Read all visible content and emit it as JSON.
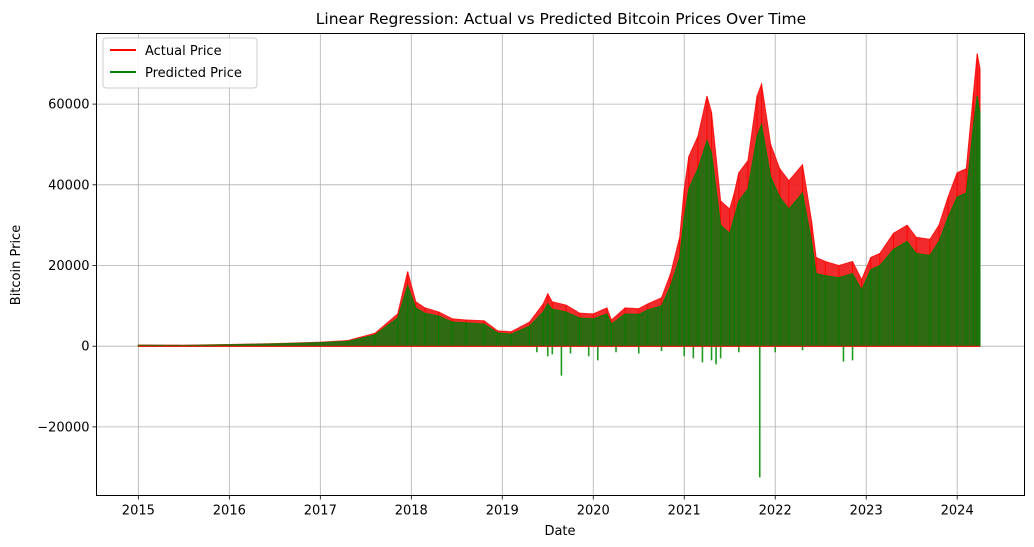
{
  "chart_data": {
    "type": "line",
    "title": "Linear Regression: Actual vs Predicted Bitcoin Prices Over Time",
    "xlabel": "Date",
    "ylabel": "Bitcoin Price",
    "xlim": [
      2014.54,
      2024.74
    ],
    "ylim": [
      -37000,
      77500
    ],
    "x_ticks": [
      "2015",
      "2016",
      "2017",
      "2018",
      "2019",
      "2020",
      "2021",
      "2022",
      "2023",
      "2024"
    ],
    "y_ticks": [
      -20000,
      0,
      20000,
      40000,
      60000
    ],
    "y_tick_labels": [
      "−20000",
      "0",
      "20000",
      "40000",
      "60000"
    ],
    "grid": true,
    "legend_position": "top-left",
    "series": [
      {
        "name": "Actual Price",
        "color": "#ff0000",
        "x": [
          2015.0,
          2015.5,
          2016.0,
          2016.5,
          2017.0,
          2017.3,
          2017.6,
          2017.85,
          2017.96,
          2018.05,
          2018.15,
          2018.3,
          2018.45,
          2018.6,
          2018.8,
          2018.95,
          2019.1,
          2019.3,
          2019.45,
          2019.5,
          2019.55,
          2019.7,
          2019.85,
          2020.0,
          2020.15,
          2020.2,
          2020.35,
          2020.5,
          2020.6,
          2020.75,
          2020.85,
          2020.95,
          2021.0,
          2021.05,
          2021.15,
          2021.25,
          2021.3,
          2021.4,
          2021.5,
          2021.55,
          2021.6,
          2021.7,
          2021.8,
          2021.85,
          2021.95,
          2022.05,
          2022.15,
          2022.3,
          2022.4,
          2022.45,
          2022.55,
          2022.7,
          2022.85,
          2022.95,
          2023.05,
          2023.15,
          2023.3,
          2023.45,
          2023.55,
          2023.7,
          2023.8,
          2023.9,
          2024.0,
          2024.1,
          2024.18,
          2024.22,
          2024.25
        ],
        "values": [
          300,
          250,
          430,
          650,
          1000,
          1400,
          3200,
          8000,
          18500,
          11000,
          9500,
          8500,
          6800,
          6500,
          6300,
          3800,
          3600,
          6000,
          10500,
          13000,
          11000,
          10200,
          8200,
          8000,
          9500,
          6500,
          9500,
          9300,
          10500,
          12000,
          18000,
          27000,
          39000,
          47000,
          52000,
          62000,
          58000,
          36000,
          34000,
          38000,
          43000,
          46000,
          62000,
          65000,
          50000,
          44000,
          41000,
          45000,
          31000,
          22000,
          21000,
          20000,
          21000,
          16500,
          22000,
          23000,
          28000,
          30000,
          27000,
          26500,
          30000,
          37000,
          43000,
          44000,
          63000,
          72500,
          69000
        ]
      },
      {
        "name": "Predicted Price",
        "color": "#008000",
        "x": [
          2015.0,
          2015.5,
          2016.0,
          2016.5,
          2017.0,
          2017.3,
          2017.6,
          2017.85,
          2017.96,
          2018.05,
          2018.15,
          2018.3,
          2018.45,
          2018.6,
          2018.8,
          2018.95,
          2019.1,
          2019.3,
          2019.45,
          2019.5,
          2019.55,
          2019.7,
          2019.85,
          2020.0,
          2020.15,
          2020.2,
          2020.35,
          2020.5,
          2020.6,
          2020.75,
          2020.85,
          2020.95,
          2021.0,
          2021.05,
          2021.15,
          2021.25,
          2021.3,
          2021.4,
          2021.5,
          2021.55,
          2021.6,
          2021.7,
          2021.8,
          2021.85,
          2021.95,
          2022.05,
          2022.15,
          2022.3,
          2022.4,
          2022.45,
          2022.55,
          2022.7,
          2022.85,
          2022.95,
          2023.05,
          2023.15,
          2023.3,
          2023.45,
          2023.55,
          2023.7,
          2023.8,
          2023.9,
          2024.0,
          2024.1,
          2024.18,
          2024.22,
          2024.25
        ],
        "values": [
          250,
          200,
          380,
          580,
          900,
          1200,
          2800,
          7000,
          15000,
          9500,
          8200,
          7500,
          6000,
          5800,
          5500,
          3300,
          3000,
          5000,
          8500,
          10500,
          9200,
          8500,
          7000,
          6800,
          8000,
          5500,
          8000,
          7900,
          9000,
          10000,
          15000,
          22000,
          32000,
          39000,
          44000,
          51000,
          48000,
          30000,
          28000,
          32000,
          36000,
          39000,
          52000,
          55000,
          42000,
          37000,
          34000,
          38000,
          26000,
          18000,
          17500,
          17000,
          18000,
          14000,
          19000,
          20000,
          24000,
          26000,
          23000,
          22500,
          26000,
          32000,
          37000,
          38000,
          55000,
          62000,
          58000
        ],
        "negative_spikes": [
          {
            "x": 2019.38,
            "value": -1500
          },
          {
            "x": 2019.5,
            "value": -2500
          },
          {
            "x": 2019.55,
            "value": -2000
          },
          {
            "x": 2019.65,
            "value": -7300
          },
          {
            "x": 2019.75,
            "value": -1800
          },
          {
            "x": 2019.95,
            "value": -2500
          },
          {
            "x": 2020.05,
            "value": -3500
          },
          {
            "x": 2020.25,
            "value": -1500
          },
          {
            "x": 2020.5,
            "value": -1800
          },
          {
            "x": 2020.75,
            "value": -1200
          },
          {
            "x": 2021.0,
            "value": -2500
          },
          {
            "x": 2021.1,
            "value": -3000
          },
          {
            "x": 2021.2,
            "value": -4000
          },
          {
            "x": 2021.3,
            "value": -3500
          },
          {
            "x": 2021.35,
            "value": -4500
          },
          {
            "x": 2021.4,
            "value": -3000
          },
          {
            "x": 2021.6,
            "value": -1500
          },
          {
            "x": 2021.83,
            "value": -32500
          },
          {
            "x": 2022.0,
            "value": -1500
          },
          {
            "x": 2022.3,
            "value": -1000
          },
          {
            "x": 2022.75,
            "value": -3800
          },
          {
            "x": 2022.85,
            "value": -3500
          }
        ]
      }
    ]
  }
}
